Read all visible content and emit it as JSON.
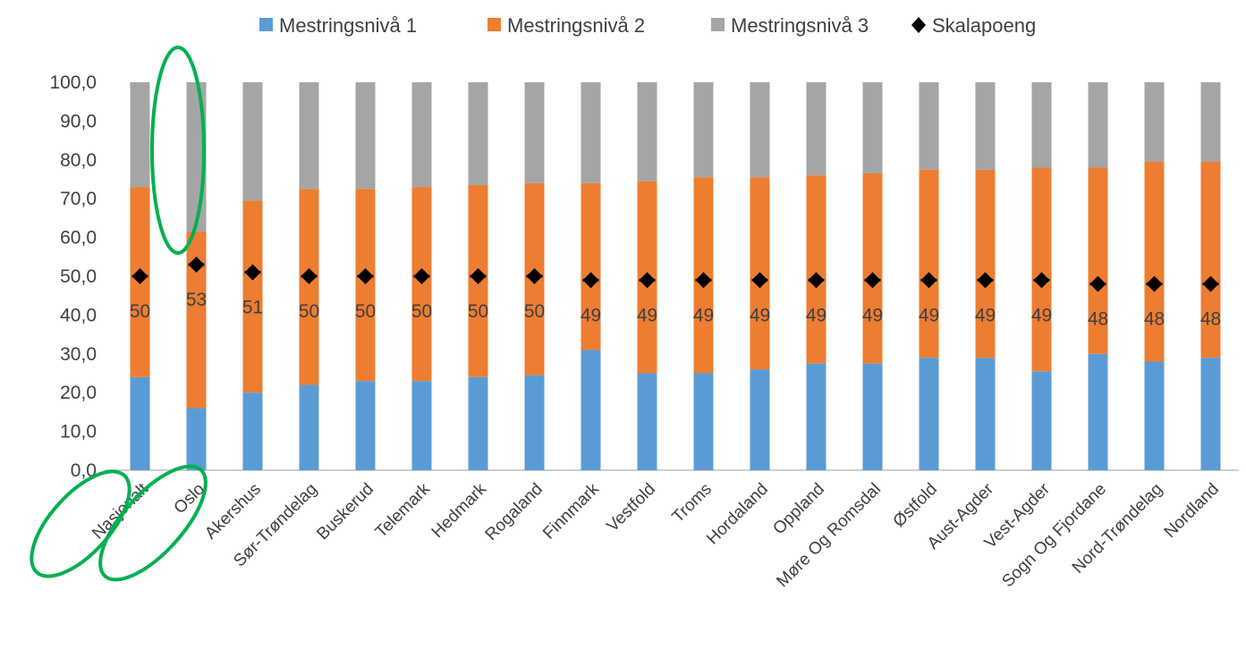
{
  "chart_data": {
    "type": "bar",
    "stacked": true,
    "title": "",
    "xlabel": "",
    "ylabel": "",
    "ylim": [
      0,
      100
    ],
    "yticks": [
      "0,0",
      "10,0",
      "20,0",
      "30,0",
      "40,0",
      "50,0",
      "60,0",
      "70,0",
      "80,0",
      "90,0",
      "100,0"
    ],
    "legend_position": "top",
    "categories": [
      "Nasjonalt",
      "Oslo",
      "Akershus",
      "Sør-Trøndelag",
      "Buskerud",
      "Telemark",
      "Hedmark",
      "Rogaland",
      "Finnmark",
      "Vestfold",
      "Troms",
      "Hordaland",
      "Oppland",
      "Møre Og Romsdal",
      "Østfold",
      "Aust-Agder",
      "Vest-Agder",
      "Sogn Og Fjordane",
      "Nord-Trøndelag",
      "Nordland"
    ],
    "series": [
      {
        "name": "Mestringsnivå 1",
        "kind": "bar",
        "color": "#5B9BD5",
        "values": [
          24,
          16,
          20,
          22,
          23,
          23,
          24,
          24.5,
          31,
          25,
          25,
          26,
          27.5,
          27.5,
          29,
          29,
          25.5,
          30,
          28,
          29
        ]
      },
      {
        "name": "Mestringsnivå 2",
        "kind": "bar",
        "color": "#ED7D31",
        "values": [
          49,
          45.5,
          49.5,
          50.5,
          49.5,
          50,
          49.5,
          49.5,
          43,
          49.5,
          50.5,
          49.5,
          48.5,
          49,
          48.5,
          48.5,
          52.5,
          48,
          51.5,
          50.5
        ]
      },
      {
        "name": "Mestringsnivå 3",
        "kind": "bar",
        "color": "#A5A5A5",
        "values": [
          27,
          38.5,
          30.5,
          27.5,
          27.5,
          27,
          26.5,
          26,
          26,
          25.5,
          24.5,
          24.5,
          24,
          23.5,
          22.5,
          22.5,
          22,
          22,
          20.5,
          20.5
        ]
      },
      {
        "name": "Skalapoeng",
        "kind": "marker",
        "color": "#000000",
        "values": [
          50,
          53,
          51,
          50,
          50,
          50,
          50,
          50,
          49,
          49,
          49,
          49,
          49,
          49,
          49,
          49,
          49,
          48,
          48,
          48
        ],
        "labels": [
          "50",
          "53",
          "51",
          "50",
          "50",
          "50",
          "50",
          "50",
          "49",
          "49",
          "49",
          "49",
          "49",
          "49",
          "49",
          "49",
          "49",
          "48",
          "48",
          "48"
        ]
      }
    ],
    "annotations": [
      {
        "shape": "ellipse",
        "color": "#00B050",
        "target": "Oslo Mestringsnivå 3 segment"
      },
      {
        "shape": "ellipse",
        "color": "#00B050",
        "target": "Nasjonalt category label"
      },
      {
        "shape": "ellipse",
        "color": "#00B050",
        "target": "Oslo category label"
      }
    ]
  }
}
